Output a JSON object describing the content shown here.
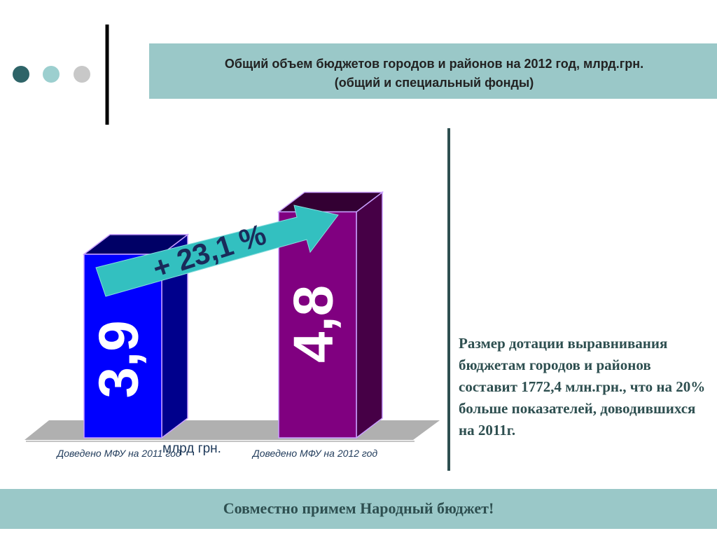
{
  "chart_data": {
    "type": "bar",
    "title": "Общий объем бюджетов городов и районов на 2012 год, млрд.грн.",
    "subtitle": "(общий и специальный фонды)",
    "categories": [
      "Доведено МФУ на 2011 год",
      "Доведено МФУ на 2012 год"
    ],
    "values": [
      3.9,
      4.8
    ],
    "value_labels": [
      "3,9",
      "4,8"
    ],
    "colors": [
      "#0000ff",
      "#800080"
    ],
    "unit_label": "млрд грн.",
    "annotation": "+ 23,1 %"
  },
  "side_text": "Размер дотации выравнивания бюджетам городов и районов составит 1772,4 млн.грн., что на 20% больше показателей, доводившихся на 2011г.",
  "footer": "Совместно примем Народный бюджет!"
}
